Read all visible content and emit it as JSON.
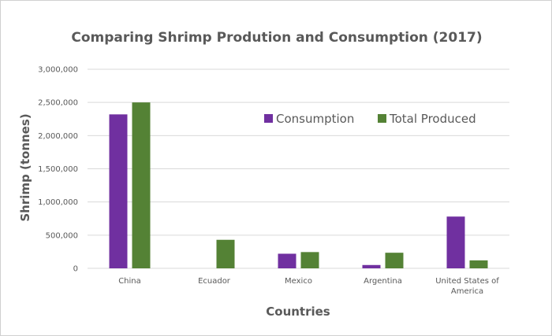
{
  "chart_data": {
    "type": "bar",
    "title": "Comparing Shrimp Prodution and Consumption (2017)",
    "xlabel": "Countries",
    "ylabel": "Shrimp (tonnes)",
    "categories": [
      [
        "China"
      ],
      [
        "Ecuador"
      ],
      [
        "Mexico"
      ],
      [
        "Argentina"
      ],
      [
        "United States of",
        "America"
      ]
    ],
    "series": [
      {
        "name": "Consumption",
        "color": "#7030a0",
        "values": [
          2320000,
          0,
          220000,
          50000,
          780000
        ]
      },
      {
        "name": "Total Produced",
        "color": "#548235",
        "values": [
          2500000,
          430000,
          245000,
          235000,
          120000
        ]
      }
    ],
    "ylim": [
      0,
      3000000
    ],
    "yticks": [
      0,
      500000,
      1000000,
      1500000,
      2000000,
      2500000,
      3000000
    ],
    "ytick_labels": [
      "0",
      "500,000",
      "1,000,000",
      "1,500,000",
      "2,000,000",
      "2,500,000",
      "3,000,000"
    ],
    "grid": true,
    "legend_position": "top-right"
  }
}
